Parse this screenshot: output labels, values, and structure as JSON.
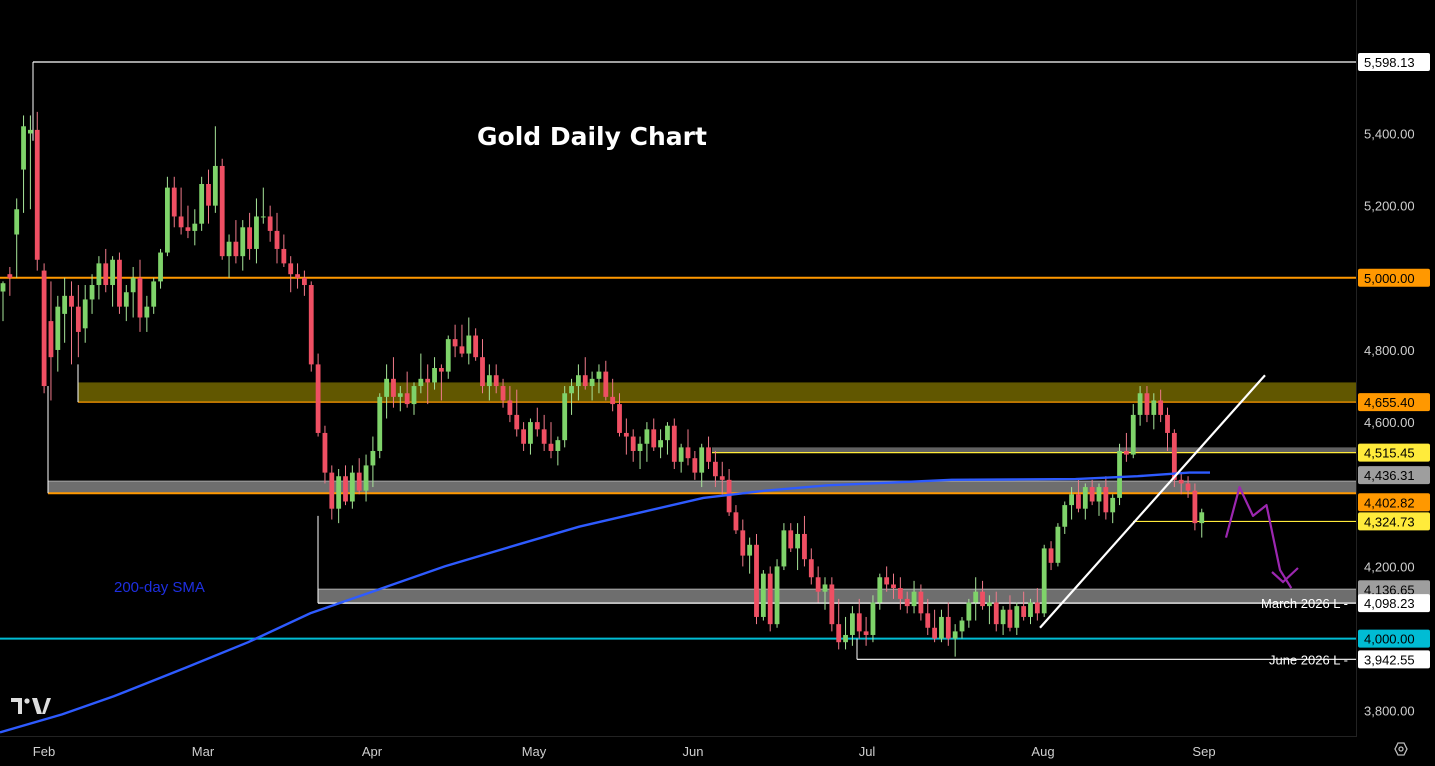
{
  "chart_data": {
    "type": "candlestick",
    "title": "Gold Daily Chart",
    "sma_label": "200-day SMA",
    "x_ticks": [
      "Feb",
      "Mar",
      "Apr",
      "May",
      "Jun",
      "Jul",
      "Aug",
      "Sep"
    ],
    "y_ticks": [
      "5,400.00",
      "5,200.00",
      "4,800.00",
      "4,600.00",
      "4,200.00",
      "3,800.00"
    ],
    "ylim": [
      3730,
      5770
    ],
    "grid": false,
    "levels": [
      {
        "value": 5598.13,
        "label": "5,598.13",
        "color": "#ffffff",
        "text_color": "#000000"
      },
      {
        "value": 5000.0,
        "label": "5,000.00",
        "color": "#ff9800",
        "text_color": "#000000"
      },
      {
        "value": 4655.4,
        "label": "4,655.40",
        "color": "#ff9800",
        "text_color": "#000000"
      },
      {
        "value": 4515.45,
        "label": "4,515.45",
        "color": "#ffeb3b",
        "text_color": "#000000"
      },
      {
        "value": 4436.31,
        "label": "4,436.31",
        "color": "#9e9e9e",
        "text_color": "#000000"
      },
      {
        "value": 4402.82,
        "label": "4,402.82",
        "color": "#ff9800",
        "text_color": "#000000"
      },
      {
        "value": 4324.73,
        "label": "4,324.73",
        "color": "#ffeb3b",
        "text_color": "#000000"
      },
      {
        "value": 4136.65,
        "label": "4,136.65",
        "color": "#9e9e9e",
        "text_color": "#000000"
      },
      {
        "value": 4098.23,
        "label": "4,098.23",
        "color": "#ffffff",
        "text_color": "#000000"
      },
      {
        "value": 4000.0,
        "label": "4,000.00",
        "color": "#00bcd4",
        "text_color": "#000000"
      },
      {
        "value": 3942.55,
        "label": "3,942.55",
        "color": "#ffffff",
        "text_color": "#000000"
      }
    ],
    "level_notes": [
      {
        "text": "March 2026 L",
        "value": 4098.23
      },
      {
        "text": "June 2026 L",
        "value": 3942.55
      }
    ],
    "zones": [
      {
        "from": 4655.4,
        "to": 4710,
        "color": "#6b6100"
      },
      {
        "from": 4515.45,
        "to": 4530,
        "color": "#6b6b6b"
      },
      {
        "from": 4402.82,
        "to": 4436.31,
        "color": "#7a7a7a"
      },
      {
        "from": 4098.23,
        "to": 4136.65,
        "color": "#7a7a7a"
      }
    ],
    "candles": [
      [
        4962,
        4990,
        4880,
        4985
      ],
      [
        5010,
        5030,
        4950,
        5000
      ],
      [
        5120,
        5220,
        5000,
        5190
      ],
      [
        5300,
        5450,
        5180,
        5420
      ],
      [
        5400,
        5450,
        5190,
        5410
      ],
      [
        5410,
        5460,
        5020,
        5050
      ],
      [
        5020,
        5040,
        4680,
        4700
      ],
      [
        4880,
        4990,
        4660,
        4780
      ],
      [
        4800,
        4950,
        4740,
        4920
      ],
      [
        4900,
        5000,
        4820,
        4950
      ],
      [
        4950,
        4990,
        4760,
        4920
      ],
      [
        4920,
        4980,
        4780,
        4850
      ],
      [
        4860,
        4980,
        4820,
        4940
      ],
      [
        4940,
        5010,
        4900,
        4980
      ],
      [
        4980,
        5060,
        4940,
        5040
      ],
      [
        5040,
        5080,
        4960,
        4980
      ],
      [
        4980,
        5060,
        4920,
        5050
      ],
      [
        5050,
        5070,
        4900,
        4920
      ],
      [
        4920,
        4980,
        4880,
        4960
      ],
      [
        4960,
        5030,
        4890,
        5000
      ],
      [
        5000,
        5050,
        4850,
        4890
      ],
      [
        4890,
        4950,
        4850,
        4920
      ],
      [
        4920,
        5000,
        4900,
        4990
      ],
      [
        4990,
        5080,
        4970,
        5070
      ],
      [
        5070,
        5280,
        5060,
        5250
      ],
      [
        5250,
        5280,
        5140,
        5170
      ],
      [
        5170,
        5250,
        5120,
        5140
      ],
      [
        5140,
        5200,
        5110,
        5130
      ],
      [
        5130,
        5190,
        5090,
        5150
      ],
      [
        5150,
        5280,
        5130,
        5260
      ],
      [
        5260,
        5300,
        5150,
        5200
      ],
      [
        5200,
        5420,
        5180,
        5310
      ],
      [
        5310,
        5330,
        5050,
        5060
      ],
      [
        5060,
        5120,
        5000,
        5100
      ],
      [
        5100,
        5160,
        5040,
        5060
      ],
      [
        5060,
        5160,
        5020,
        5140
      ],
      [
        5140,
        5180,
        5050,
        5080
      ],
      [
        5080,
        5220,
        5040,
        5170
      ],
      [
        5170,
        5250,
        5150,
        5170
      ],
      [
        5170,
        5200,
        5100,
        5130
      ],
      [
        5130,
        5180,
        5040,
        5080
      ],
      [
        5080,
        5120,
        5030,
        5040
      ],
      [
        5040,
        5060,
        4960,
        5010
      ],
      [
        5010,
        5040,
        4970,
        5000
      ],
      [
        5000,
        5020,
        4950,
        4980
      ],
      [
        4980,
        4990,
        4740,
        4760
      ],
      [
        4760,
        4790,
        4560,
        4570
      ],
      [
        4570,
        4590,
        4430,
        4460
      ],
      [
        4460,
        4480,
        4330,
        4360
      ],
      [
        4360,
        4470,
        4320,
        4450
      ],
      [
        4450,
        4480,
        4370,
        4380
      ],
      [
        4380,
        4480,
        4360,
        4460
      ],
      [
        4460,
        4500,
        4400,
        4410
      ],
      [
        4410,
        4510,
        4380,
        4480
      ],
      [
        4480,
        4560,
        4420,
        4520
      ],
      [
        4520,
        4680,
        4500,
        4670
      ],
      [
        4670,
        4760,
        4610,
        4720
      ],
      [
        4720,
        4780,
        4640,
        4670
      ],
      [
        4670,
        4700,
        4630,
        4680
      ],
      [
        4680,
        4740,
        4640,
        4650
      ],
      [
        4650,
        4710,
        4620,
        4700
      ],
      [
        4700,
        4790,
        4680,
        4720
      ],
      [
        4720,
        4760,
        4650,
        4710
      ],
      [
        4710,
        4780,
        4690,
        4750
      ],
      [
        4750,
        4760,
        4660,
        4740
      ],
      [
        4740,
        4840,
        4720,
        4830
      ],
      [
        4830,
        4870,
        4780,
        4810
      ],
      [
        4810,
        4870,
        4780,
        4790
      ],
      [
        4790,
        4890,
        4760,
        4840
      ],
      [
        4840,
        4860,
        4770,
        4780
      ],
      [
        4780,
        4830,
        4680,
        4700
      ],
      [
        4700,
        4760,
        4660,
        4730
      ],
      [
        4730,
        4760,
        4680,
        4700
      ],
      [
        4700,
        4720,
        4640,
        4660
      ],
      [
        4660,
        4700,
        4600,
        4620
      ],
      [
        4620,
        4690,
        4560,
        4580
      ],
      [
        4580,
        4600,
        4520,
        4540
      ],
      [
        4540,
        4610,
        4510,
        4600
      ],
      [
        4600,
        4640,
        4560,
        4580
      ],
      [
        4580,
        4620,
        4520,
        4540
      ],
      [
        4540,
        4600,
        4500,
        4520
      ],
      [
        4520,
        4560,
        4480,
        4550
      ],
      [
        4550,
        4700,
        4530,
        4680
      ],
      [
        4680,
        4720,
        4620,
        4700
      ],
      [
        4700,
        4760,
        4660,
        4730
      ],
      [
        4730,
        4780,
        4690,
        4700
      ],
      [
        4700,
        4740,
        4660,
        4720
      ],
      [
        4720,
        4760,
        4680,
        4740
      ],
      [
        4740,
        4770,
        4660,
        4670
      ],
      [
        4670,
        4720,
        4630,
        4650
      ],
      [
        4650,
        4680,
        4560,
        4570
      ],
      [
        4570,
        4610,
        4510,
        4560
      ],
      [
        4560,
        4580,
        4490,
        4520
      ],
      [
        4520,
        4560,
        4470,
        4540
      ],
      [
        4540,
        4600,
        4490,
        4580
      ],
      [
        4580,
        4610,
        4520,
        4530
      ],
      [
        4530,
        4580,
        4500,
        4550
      ],
      [
        4550,
        4600,
        4510,
        4590
      ],
      [
        4590,
        4610,
        4470,
        4490
      ],
      [
        4490,
        4540,
        4460,
        4530
      ],
      [
        4530,
        4580,
        4480,
        4500
      ],
      [
        4500,
        4520,
        4440,
        4460
      ],
      [
        4460,
        4540,
        4420,
        4530
      ],
      [
        4530,
        4560,
        4470,
        4490
      ],
      [
        4490,
        4520,
        4420,
        4450
      ],
      [
        4450,
        4490,
        4400,
        4440
      ],
      [
        4440,
        4470,
        4340,
        4350
      ],
      [
        4350,
        4370,
        4290,
        4300
      ],
      [
        4300,
        4330,
        4200,
        4230
      ],
      [
        4230,
        4280,
        4180,
        4260
      ],
      [
        4260,
        4290,
        4040,
        4060
      ],
      [
        4060,
        4190,
        4050,
        4180
      ],
      [
        4180,
        4200,
        4020,
        4040
      ],
      [
        4040,
        4220,
        4030,
        4200
      ],
      [
        4200,
        4320,
        4190,
        4300
      ],
      [
        4300,
        4320,
        4240,
        4250
      ],
      [
        4250,
        4320,
        4190,
        4290
      ],
      [
        4290,
        4340,
        4200,
        4220
      ],
      [
        4220,
        4250,
        4150,
        4170
      ],
      [
        4170,
        4200,
        4100,
        4130
      ],
      [
        4130,
        4170,
        4080,
        4150
      ],
      [
        4150,
        4170,
        4020,
        4040
      ],
      [
        4040,
        4110,
        3970,
        3990
      ],
      [
        3990,
        4060,
        3970,
        4010
      ],
      [
        4010,
        4090,
        3980,
        4070
      ],
      [
        4070,
        4110,
        4000,
        4020
      ],
      [
        4020,
        4060,
        3980,
        4010
      ],
      [
        4010,
        4120,
        3990,
        4100
      ],
      [
        4100,
        4180,
        4080,
        4170
      ],
      [
        4170,
        4200,
        4130,
        4150
      ],
      [
        4150,
        4180,
        4110,
        4140
      ],
      [
        4140,
        4170,
        4080,
        4110
      ],
      [
        4110,
        4130,
        4070,
        4090
      ],
      [
        4090,
        4160,
        4070,
        4130
      ],
      [
        4130,
        4150,
        4050,
        4070
      ],
      [
        4070,
        4110,
        4010,
        4030
      ],
      [
        4030,
        4080,
        3990,
        4000
      ],
      [
        4000,
        4080,
        3990,
        4060
      ],
      [
        4060,
        4100,
        3980,
        4000
      ],
      [
        4000,
        4040,
        3950,
        4020
      ],
      [
        4020,
        4060,
        4000,
        4050
      ],
      [
        4050,
        4110,
        4030,
        4100
      ],
      [
        4100,
        4170,
        4050,
        4130
      ],
      [
        4130,
        4160,
        4080,
        4090
      ],
      [
        4090,
        4120,
        4040,
        4100
      ],
      [
        4100,
        4130,
        4020,
        4040
      ],
      [
        4040,
        4090,
        4010,
        4080
      ],
      [
        4080,
        4120,
        4020,
        4030
      ],
      [
        4030,
        4100,
        4010,
        4090
      ],
      [
        4090,
        4130,
        4050,
        4060
      ],
      [
        4060,
        4110,
        4040,
        4100
      ],
      [
        4100,
        4140,
        4050,
        4070
      ],
      [
        4070,
        4260,
        4060,
        4250
      ],
      [
        4250,
        4270,
        4190,
        4210
      ],
      [
        4210,
        4320,
        4200,
        4310
      ],
      [
        4310,
        4380,
        4290,
        4370
      ],
      [
        4370,
        4420,
        4330,
        4400
      ],
      [
        4400,
        4440,
        4350,
        4360
      ],
      [
        4360,
        4430,
        4330,
        4420
      ],
      [
        4420,
        4440,
        4370,
        4380
      ],
      [
        4380,
        4430,
        4340,
        4420
      ],
      [
        4420,
        4450,
        4330,
        4350
      ],
      [
        4350,
        4400,
        4320,
        4390
      ],
      [
        4390,
        4540,
        4370,
        4520
      ],
      [
        4520,
        4570,
        4490,
        4510
      ],
      [
        4510,
        4650,
        4500,
        4620
      ],
      [
        4620,
        4700,
        4590,
        4680
      ],
      [
        4680,
        4700,
        4600,
        4620
      ],
      [
        4620,
        4680,
        4580,
        4660
      ],
      [
        4660,
        4690,
        4600,
        4620
      ],
      [
        4620,
        4640,
        4520,
        4570
      ],
      [
        4570,
        4580,
        4420,
        4440
      ],
      [
        4440,
        4460,
        4400,
        4430
      ],
      [
        4430,
        4450,
        4390,
        4410
      ],
      [
        4410,
        4430,
        4300,
        4320
      ],
      [
        4320,
        4360,
        4280,
        4350
      ]
    ],
    "sma_200": [
      [
        0,
        3740
      ],
      [
        60,
        3790
      ],
      [
        110,
        3840
      ],
      [
        180,
        3920
      ],
      [
        240,
        3990
      ],
      [
        300,
        4070
      ],
      [
        360,
        4130
      ],
      [
        430,
        4200
      ],
      [
        500,
        4260
      ],
      [
        560,
        4310
      ],
      [
        620,
        4350
      ],
      [
        680,
        4390
      ],
      [
        740,
        4410
      ],
      [
        800,
        4425
      ],
      [
        860,
        4432
      ],
      [
        920,
        4440
      ],
      [
        980,
        4441
      ],
      [
        1040,
        4442
      ],
      [
        1100,
        4450
      ],
      [
        1150,
        4460
      ],
      [
        1170,
        4460
      ]
    ],
    "trendline": [
      [
        123,
        4030
      ],
      [
        200,
        4730
      ]
    ],
    "projection": [
      [
        0,
        4280
      ],
      [
        6,
        4420
      ],
      [
        12,
        4340
      ],
      [
        18,
        4370
      ],
      [
        24,
        4190
      ],
      [
        29,
        4140
      ]
    ]
  }
}
